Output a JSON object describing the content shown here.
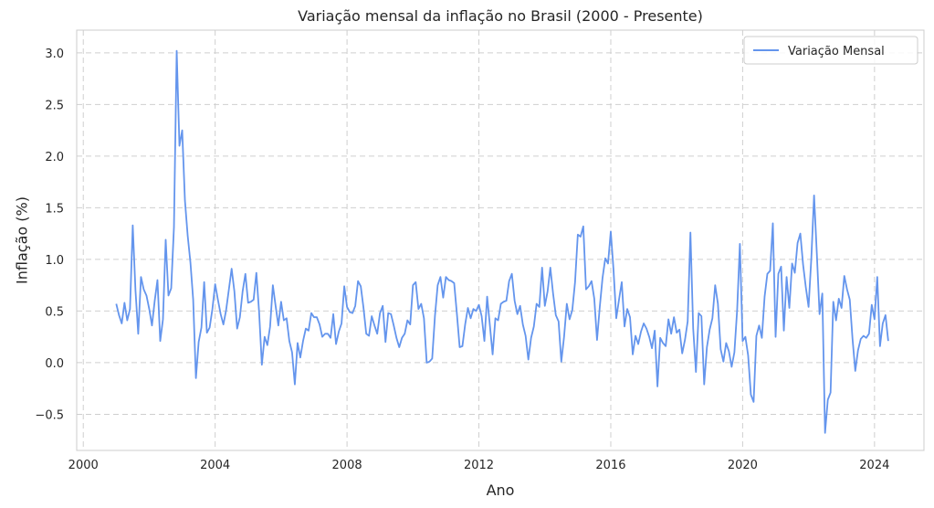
{
  "chart_data": {
    "type": "line",
    "title": "Variação mensal da inflação no Brasil (2000 - Presente)",
    "xlabel": "Ano",
    "ylabel": "Inflação (%)",
    "xlim": [
      1999.8,
      2025.5
    ],
    "ylim": [
      -0.85,
      3.22
    ],
    "x_ticks": [
      2000,
      2004,
      2008,
      2012,
      2016,
      2020,
      2024
    ],
    "x_tick_labels": [
      "2000",
      "2004",
      "2008",
      "2012",
      "2016",
      "2020",
      "2024"
    ],
    "y_ticks": [
      -0.5,
      0.0,
      0.5,
      1.0,
      1.5,
      2.0,
      2.5,
      3.0
    ],
    "y_tick_labels": [
      "−0.5",
      "0.0",
      "0.5",
      "1.0",
      "1.5",
      "2.0",
      "2.5",
      "3.0"
    ],
    "grid": true,
    "legend_position": "top-right",
    "start_year": 2001.0,
    "step_years": 0.0833333,
    "series": [
      {
        "name": "Variação Mensal",
        "color": "#6495ED",
        "values": [
          0.57,
          0.46,
          0.38,
          0.58,
          0.41,
          0.52,
          1.33,
          0.7,
          0.28,
          0.83,
          0.71,
          0.65,
          0.52,
          0.36,
          0.6,
          0.8,
          0.21,
          0.42,
          1.19,
          0.65,
          0.72,
          1.31,
          3.02,
          2.1,
          2.25,
          1.57,
          1.23,
          0.97,
          0.61,
          -0.15,
          0.2,
          0.34,
          0.78,
          0.29,
          0.34,
          0.52,
          0.76,
          0.61,
          0.47,
          0.37,
          0.51,
          0.71,
          0.91,
          0.69,
          0.33,
          0.44,
          0.69,
          0.86,
          0.58,
          0.59,
          0.61,
          0.87,
          0.49,
          -0.02,
          0.25,
          0.17,
          0.35,
          0.75,
          0.55,
          0.36,
          0.59,
          0.41,
          0.43,
          0.21,
          0.1,
          -0.21,
          0.19,
          0.05,
          0.21,
          0.33,
          0.31,
          0.48,
          0.44,
          0.44,
          0.37,
          0.25,
          0.28,
          0.28,
          0.24,
          0.47,
          0.18,
          0.3,
          0.38,
          0.74,
          0.54,
          0.49,
          0.48,
          0.55,
          0.79,
          0.74,
          0.53,
          0.28,
          0.26,
          0.45,
          0.36,
          0.28,
          0.48,
          0.55,
          0.2,
          0.48,
          0.47,
          0.36,
          0.24,
          0.15,
          0.24,
          0.28,
          0.41,
          0.37,
          0.75,
          0.78,
          0.52,
          0.57,
          0.43,
          0.0,
          0.01,
          0.04,
          0.45,
          0.75,
          0.83,
          0.63,
          0.83,
          0.8,
          0.79,
          0.77,
          0.47,
          0.15,
          0.16,
          0.37,
          0.53,
          0.43,
          0.52,
          0.5,
          0.56,
          0.45,
          0.21,
          0.64,
          0.36,
          0.08,
          0.43,
          0.41,
          0.57,
          0.59,
          0.6,
          0.79,
          0.86,
          0.6,
          0.47,
          0.55,
          0.37,
          0.26,
          0.03,
          0.24,
          0.35,
          0.57,
          0.54,
          0.92,
          0.55,
          0.69,
          0.92,
          0.67,
          0.46,
          0.4,
          0.01,
          0.25,
          0.57,
          0.42,
          0.51,
          0.78,
          1.24,
          1.22,
          1.32,
          0.71,
          0.74,
          0.79,
          0.62,
          0.22,
          0.54,
          0.82,
          1.01,
          0.96,
          1.27,
          0.9,
          0.43,
          0.61,
          0.78,
          0.35,
          0.52,
          0.44,
          0.08,
          0.26,
          0.18,
          0.3,
          0.38,
          0.33,
          0.25,
          0.14,
          0.31,
          -0.23,
          0.24,
          0.19,
          0.16,
          0.42,
          0.28,
          0.44,
          0.29,
          0.32,
          0.09,
          0.22,
          0.4,
          1.26,
          0.33,
          -0.09,
          0.48,
          0.45,
          -0.21,
          0.15,
          0.32,
          0.43,
          0.75,
          0.57,
          0.13,
          0.01,
          0.19,
          0.11,
          -0.04,
          0.1,
          0.51,
          1.15,
          0.21,
          0.25,
          0.07,
          -0.31,
          -0.38,
          0.26,
          0.36,
          0.24,
          0.64,
          0.86,
          0.89,
          1.35,
          0.25,
          0.86,
          0.93,
          0.31,
          0.83,
          0.53,
          0.96,
          0.87,
          1.16,
          1.25,
          0.95,
          0.73,
          0.54,
          1.01,
          1.62,
          1.06,
          0.47,
          0.67,
          -0.68,
          -0.36,
          -0.29,
          0.59,
          0.41,
          0.62,
          0.53,
          0.84,
          0.71,
          0.61,
          0.23,
          -0.08,
          0.12,
          0.23,
          0.26,
          0.24,
          0.28,
          0.56,
          0.42,
          0.83,
          0.16,
          0.38,
          0.46,
          0.21
        ]
      }
    ]
  }
}
